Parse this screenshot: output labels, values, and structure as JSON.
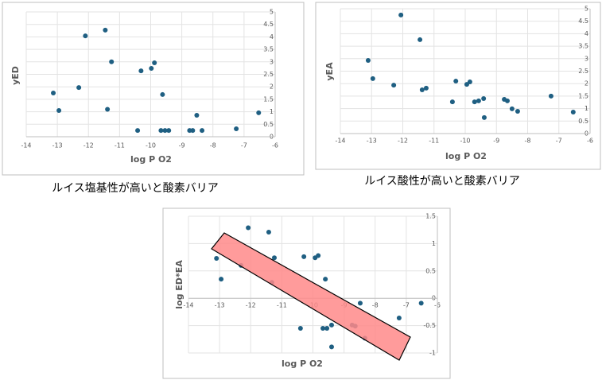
{
  "chart_data": [
    {
      "type": "scatter",
      "x_label": "log P O2",
      "y_label": "yED",
      "color": "#1f5f82",
      "grid": true,
      "xlim": [
        -14,
        -6
      ],
      "ylim": [
        0,
        5
      ],
      "xticks": [
        -14,
        -13,
        -12,
        -11,
        -10,
        -9,
        -8,
        -7,
        -6
      ],
      "yticks": [
        0,
        0.5,
        1,
        1.5,
        2,
        2.5,
        3,
        3.5,
        4,
        4.5,
        5
      ],
      "x": [
        -13.13,
        -12.95,
        -12.31,
        -12.1,
        -11.46,
        -11.26,
        -11.39,
        -10.42,
        -10.31,
        -9.98,
        -9.88,
        -9.62,
        -9.67,
        -9.54,
        -9.42,
        -8.75,
        -8.65,
        -8.52,
        -8.35,
        -7.25,
        -6.53
      ],
      "values": [
        1.75,
        1.05,
        1.97,
        4.04,
        4.27,
        3.0,
        1.1,
        0.25,
        2.64,
        2.74,
        2.96,
        1.69,
        0.25,
        0.25,
        0.25,
        0.25,
        0.25,
        0.86,
        0.25,
        0.32,
        0.96
      ]
    },
    {
      "type": "scatter",
      "x_label": "log P O2",
      "y_label": "yEA",
      "color": "#1f5f82",
      "grid": true,
      "xlim": [
        -14,
        -6
      ],
      "ylim": [
        0,
        5
      ],
      "xticks": [
        -14,
        -13,
        -12,
        -11,
        -10,
        -9,
        -8,
        -7,
        -6
      ],
      "yticks": [
        0,
        0.5,
        1,
        1.5,
        2,
        2.5,
        3,
        3.5,
        4,
        4.5,
        5
      ],
      "x": [
        -13.11,
        -12.96,
        -12.29,
        -12.06,
        -11.45,
        -11.38,
        -11.25,
        -10.41,
        -10.3,
        -9.95,
        -9.85,
        -9.7,
        -9.57,
        -9.41,
        -9.39,
        -8.75,
        -8.65,
        -8.5,
        -8.32,
        -7.25,
        -6.54
      ],
      "values": [
        2.93,
        2.2,
        1.94,
        4.75,
        3.76,
        1.75,
        1.82,
        1.27,
        2.1,
        1.97,
        2.07,
        1.27,
        1.31,
        1.4,
        0.64,
        1.37,
        1.31,
        0.99,
        0.89,
        1.5,
        0.86
      ]
    },
    {
      "type": "scatter",
      "x_label": "log P O2",
      "y_label": "log ED*EA",
      "color": "#1f5f82",
      "grid": true,
      "xlim": [
        -14,
        -6
      ],
      "ylim": [
        -1,
        1.5
      ],
      "xticks": [
        -14,
        -13,
        -12,
        -11,
        -10,
        -9,
        -8,
        -7,
        -6
      ],
      "yticks": [
        -1,
        -0.5,
        0,
        0.5,
        1,
        1.5
      ],
      "x": [
        -13.1,
        -12.95,
        -12.31,
        -12.08,
        -11.42,
        -11.24,
        -11.32,
        -10.4,
        -10.29,
        -9.93,
        -9.83,
        -9.68,
        -9.55,
        -9.4,
        -9.6,
        -9.4,
        -8.74,
        -8.64,
        -8.48,
        -8.33,
        -7.23,
        -6.52
      ],
      "values": [
        0.73,
        0.35,
        0.6,
        1.29,
        1.21,
        0.74,
        0.29,
        -0.55,
        0.76,
        0.74,
        0.78,
        -0.55,
        -0.55,
        -0.49,
        0.35,
        -0.89,
        -0.49,
        -0.51,
        -0.09,
        -0.73,
        -0.36,
        -0.09
      ]
    }
  ],
  "captions": [
    "ルイス塩基性が高いと酸素バリア",
    "ルイス酸性が高いと酸素バリア"
  ]
}
